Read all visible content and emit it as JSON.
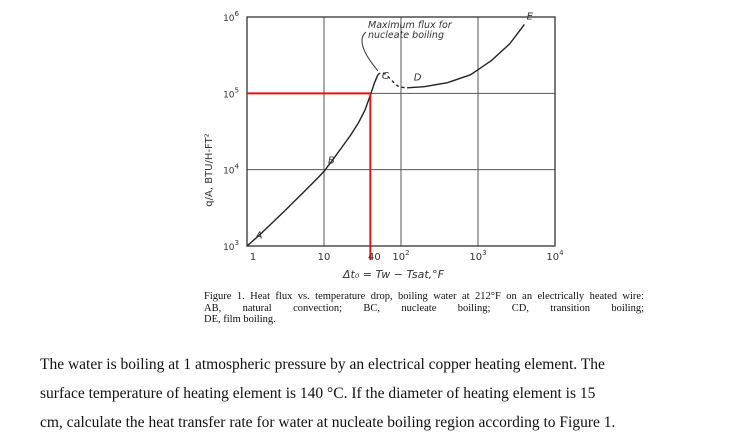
{
  "chart_data": {
    "type": "line",
    "x_scale": "log",
    "y_scale": "log",
    "xlim": [
      1,
      10000
    ],
    "ylim": [
      1000,
      1000000
    ],
    "x_tick_labels": [
      {
        "value": 1,
        "label": "1"
      },
      {
        "value": 10,
        "label": "10"
      },
      {
        "value": 40,
        "label": "40"
      },
      {
        "value": 100,
        "label": "10",
        "sup": "2"
      },
      {
        "value": 1000,
        "label": "10",
        "sup": "3"
      },
      {
        "value": 10000,
        "label": "10",
        "sup": "4"
      }
    ],
    "y_tick_labels": [
      {
        "value": 1000,
        "label": "10",
        "sup": "3"
      },
      {
        "value": 10000,
        "label": "10",
        "sup": "4"
      },
      {
        "value": 100000,
        "label": "10",
        "sup": "5"
      },
      {
        "value": 1000000,
        "label": "10",
        "sup": "6"
      }
    ],
    "xlabel": "Δt₀ = Tw − Tsat,°F",
    "ylabel": "q/A, BTU/H-FT²",
    "grid": true,
    "series": [
      {
        "style": "solid",
        "x": [
          1,
          1.4,
          2,
          3,
          4.5,
          6,
          8,
          10
        ],
        "y": [
          1000,
          1350,
          1900,
          2800,
          4200,
          5600,
          7500,
          9500
        ]
      },
      {
        "style": "solid",
        "x": [
          10,
          13,
          17,
          22,
          28,
          34,
          40,
          45,
          50
        ],
        "y": [
          9500,
          13500,
          19500,
          28000,
          41000,
          60000,
          95000,
          135000,
          175000
        ]
      },
      {
        "style": "dashed",
        "x": [
          50,
          55,
          62,
          70,
          80,
          90,
          100,
          120
        ],
        "y": [
          175000,
          188000,
          180000,
          160000,
          140000,
          125000,
          120000,
          118000
        ]
      },
      {
        "style": "solid",
        "x": [
          120,
          200,
          400,
          800,
          1500,
          2600,
          4000
        ],
        "y": [
          118000,
          122000,
          138000,
          175000,
          270000,
          450000,
          800000
        ]
      }
    ],
    "highlight": {
      "x": 40,
      "y": 100000,
      "color": "#ee1111"
    },
    "point_labels": [
      {
        "text": "A",
        "x": 1.15,
        "y": 1150
      },
      {
        "text": "B",
        "x": 10,
        "y": 11000
      },
      {
        "text": "C",
        "x": 50,
        "y": 140000
      },
      {
        "text": "D",
        "x": 130,
        "y": 135000
      },
      {
        "text": "E",
        "x": 3800,
        "y": 850000
      }
    ],
    "annotation": {
      "lines": [
        "Maximum flux for",
        "nucleate boiling"
      ],
      "points_to": {
        "x": 50,
        "y": 175000
      }
    }
  },
  "caption": {
    "lines": [
      "Figure 1. Heat flux vs. temperature drop, boiling water at 212°F on an electrically heated wire:",
      "AB, natural convection; BC, nucleate boiling; CD, transition boiling;",
      "DE, film boiling."
    ]
  },
  "question": {
    "lines": [
      "The water is boiling at 1 atmospheric pressure by an electrical copper heating element. The",
      "surface temperature of heating element is 140 °C.  If the diameter of heating element is 15",
      "cm, calculate the heat transfer rate for water at nucleate boiling region according to Figure 1."
    ]
  }
}
